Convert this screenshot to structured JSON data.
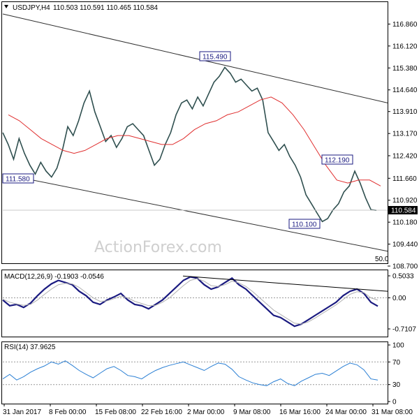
{
  "header": {
    "symbol": "USDJPY,H4",
    "ohlc": "110.503 110.591 110.465 110.584",
    "macd_label": "MACD(12,26,9) -0.1903 -0.0546",
    "rsi_label": "RSI(14) 37.9625"
  },
  "watermark": "ActionForex.com",
  "chart_data": [
    {
      "type": "line",
      "title": "USDJPY,H4",
      "ylim": [
        108.7,
        117.2
      ],
      "y_ticks": [
        "116.860",
        "116.120",
        "115.380",
        "114.640",
        "113.910",
        "113.170",
        "112.420",
        "111.660",
        "110.920",
        "110.180",
        "109.440",
        "108.700"
      ],
      "x_ticks": [
        "31 Jan 2017",
        "8 Feb 00:00",
        "15 Feb 08:00",
        "22 Feb 16:00",
        "2 Mar 00:00",
        "9 Mar 08:00",
        "16 Mar 16:00",
        "24 Mar 00:00",
        "31 Mar 08:00"
      ],
      "current_price": "110.584",
      "annotations": [
        {
          "label": "115.490",
          "x": "9 Mar 08:00",
          "y": 115.49
        },
        {
          "label": "111.580",
          "x": "31 Jan 2017",
          "y": 111.58
        },
        {
          "label": "112.190",
          "x": "31 Mar 08:00",
          "y": 112.19
        },
        {
          "label": "110.100",
          "x": "24 Mar 00:00",
          "y": 110.1
        },
        {
          "label": "50.0"
        }
      ],
      "series": [
        {
          "name": "price",
          "color": "#2f4f4f",
          "values": [
            113.2,
            112.8,
            112.3,
            113.0,
            112.5,
            112.1,
            111.8,
            112.2,
            111.9,
            111.7,
            112.0,
            112.6,
            113.4,
            113.1,
            113.6,
            114.2,
            114.6,
            113.9,
            113.4,
            112.9,
            113.1,
            112.7,
            113.0,
            113.4,
            113.5,
            113.3,
            113.1,
            112.6,
            112.1,
            112.3,
            112.8,
            113.2,
            113.8,
            114.2,
            114.3,
            114.0,
            114.4,
            114.1,
            114.5,
            114.9,
            115.1,
            115.4,
            115.2,
            114.9,
            115.0,
            114.8,
            114.6,
            114.7,
            114.3,
            113.2,
            112.9,
            112.6,
            112.8,
            112.4,
            112.1,
            111.7,
            111.1,
            110.8,
            110.5,
            110.2,
            110.3,
            110.6,
            110.8,
            111.2,
            111.4,
            111.9,
            111.5,
            111.0,
            110.6,
            110.58
          ]
        },
        {
          "name": "MA",
          "color": "#e03030",
          "values": [
            113.8,
            113.6,
            113.3,
            113.0,
            112.8,
            112.6,
            112.5,
            112.6,
            112.8,
            113.0,
            113.1,
            113.1,
            113.0,
            112.9,
            112.8,
            112.8,
            113.0,
            113.3,
            113.5,
            113.6,
            113.8,
            113.9,
            114.1,
            114.3,
            114.4,
            114.2,
            113.8,
            113.3,
            112.7,
            112.1,
            111.6,
            111.5,
            111.6,
            111.6,
            111.4
          ]
        },
        {
          "name": "channel-upper",
          "color": "#303030",
          "values": [
            117.2,
            114.2
          ]
        },
        {
          "name": "channel-lower",
          "color": "#303030",
          "values": [
            111.8,
            109.2
          ]
        }
      ]
    },
    {
      "type": "line",
      "title": "MACD(12,26,9)",
      "ylim": [
        -0.7107,
        0.5033
      ],
      "y_ticks": [
        "0.5033",
        "0.00",
        "-0.7107"
      ],
      "series": [
        {
          "name": "MACD",
          "color": "#1a1a80",
          "values": [
            -0.05,
            -0.18,
            -0.15,
            -0.22,
            -0.12,
            0.05,
            0.2,
            0.32,
            0.4,
            0.35,
            0.3,
            0.15,
            0.05,
            -0.1,
            -0.15,
            -0.05,
            0.02,
            0.1,
            -0.05,
            -0.15,
            -0.18,
            -0.25,
            -0.15,
            -0.05,
            0.1,
            0.25,
            0.4,
            0.48,
            0.45,
            0.3,
            0.2,
            0.25,
            0.35,
            0.45,
            0.3,
            0.2,
            0.05,
            -0.1,
            -0.25,
            -0.4,
            -0.45,
            -0.55,
            -0.65,
            -0.6,
            -0.5,
            -0.4,
            -0.3,
            -0.2,
            -0.1,
            0.05,
            0.15,
            0.2,
            0.1,
            -0.1,
            -0.19
          ]
        },
        {
          "name": "signal",
          "color": "#b0b0b0",
          "values": [
            -0.03,
            -0.1,
            -0.14,
            -0.17,
            -0.15,
            -0.05,
            0.08,
            0.2,
            0.3,
            0.33,
            0.32,
            0.24,
            0.12,
            0.0,
            -0.08,
            -0.07,
            -0.02,
            0.04,
            0.0,
            -0.08,
            -0.13,
            -0.18,
            -0.17,
            -0.1,
            0.0,
            0.14,
            0.28,
            0.4,
            0.44,
            0.38,
            0.28,
            0.26,
            0.3,
            0.38,
            0.34,
            0.26,
            0.14,
            0.0,
            -0.14,
            -0.28,
            -0.38,
            -0.48,
            -0.58,
            -0.6,
            -0.55,
            -0.46,
            -0.36,
            -0.26,
            -0.16,
            -0.04,
            0.08,
            0.14,
            0.12,
            0.0,
            -0.05
          ]
        },
        {
          "name": "divergence-line",
          "color": "#000000",
          "values": [
            0.5,
            0.15
          ]
        }
      ]
    },
    {
      "type": "line",
      "title": "RSI(14)",
      "ylim": [
        0,
        100
      ],
      "y_ticks": [
        "100",
        "70",
        "30",
        "0"
      ],
      "levels": [
        70,
        30
      ],
      "series": [
        {
          "name": "RSI",
          "color": "#2a7fd4",
          "values": [
            40,
            48,
            38,
            44,
            52,
            58,
            63,
            70,
            66,
            72,
            64,
            55,
            48,
            42,
            50,
            58,
            62,
            55,
            46,
            44,
            40,
            48,
            55,
            60,
            64,
            67,
            70,
            65,
            60,
            55,
            62,
            68,
            66,
            57,
            44,
            38,
            33,
            30,
            28,
            35,
            40,
            32,
            28,
            36,
            42,
            48,
            50,
            46,
            54,
            62,
            68,
            65,
            56,
            40,
            37.96
          ]
        }
      ]
    }
  ]
}
